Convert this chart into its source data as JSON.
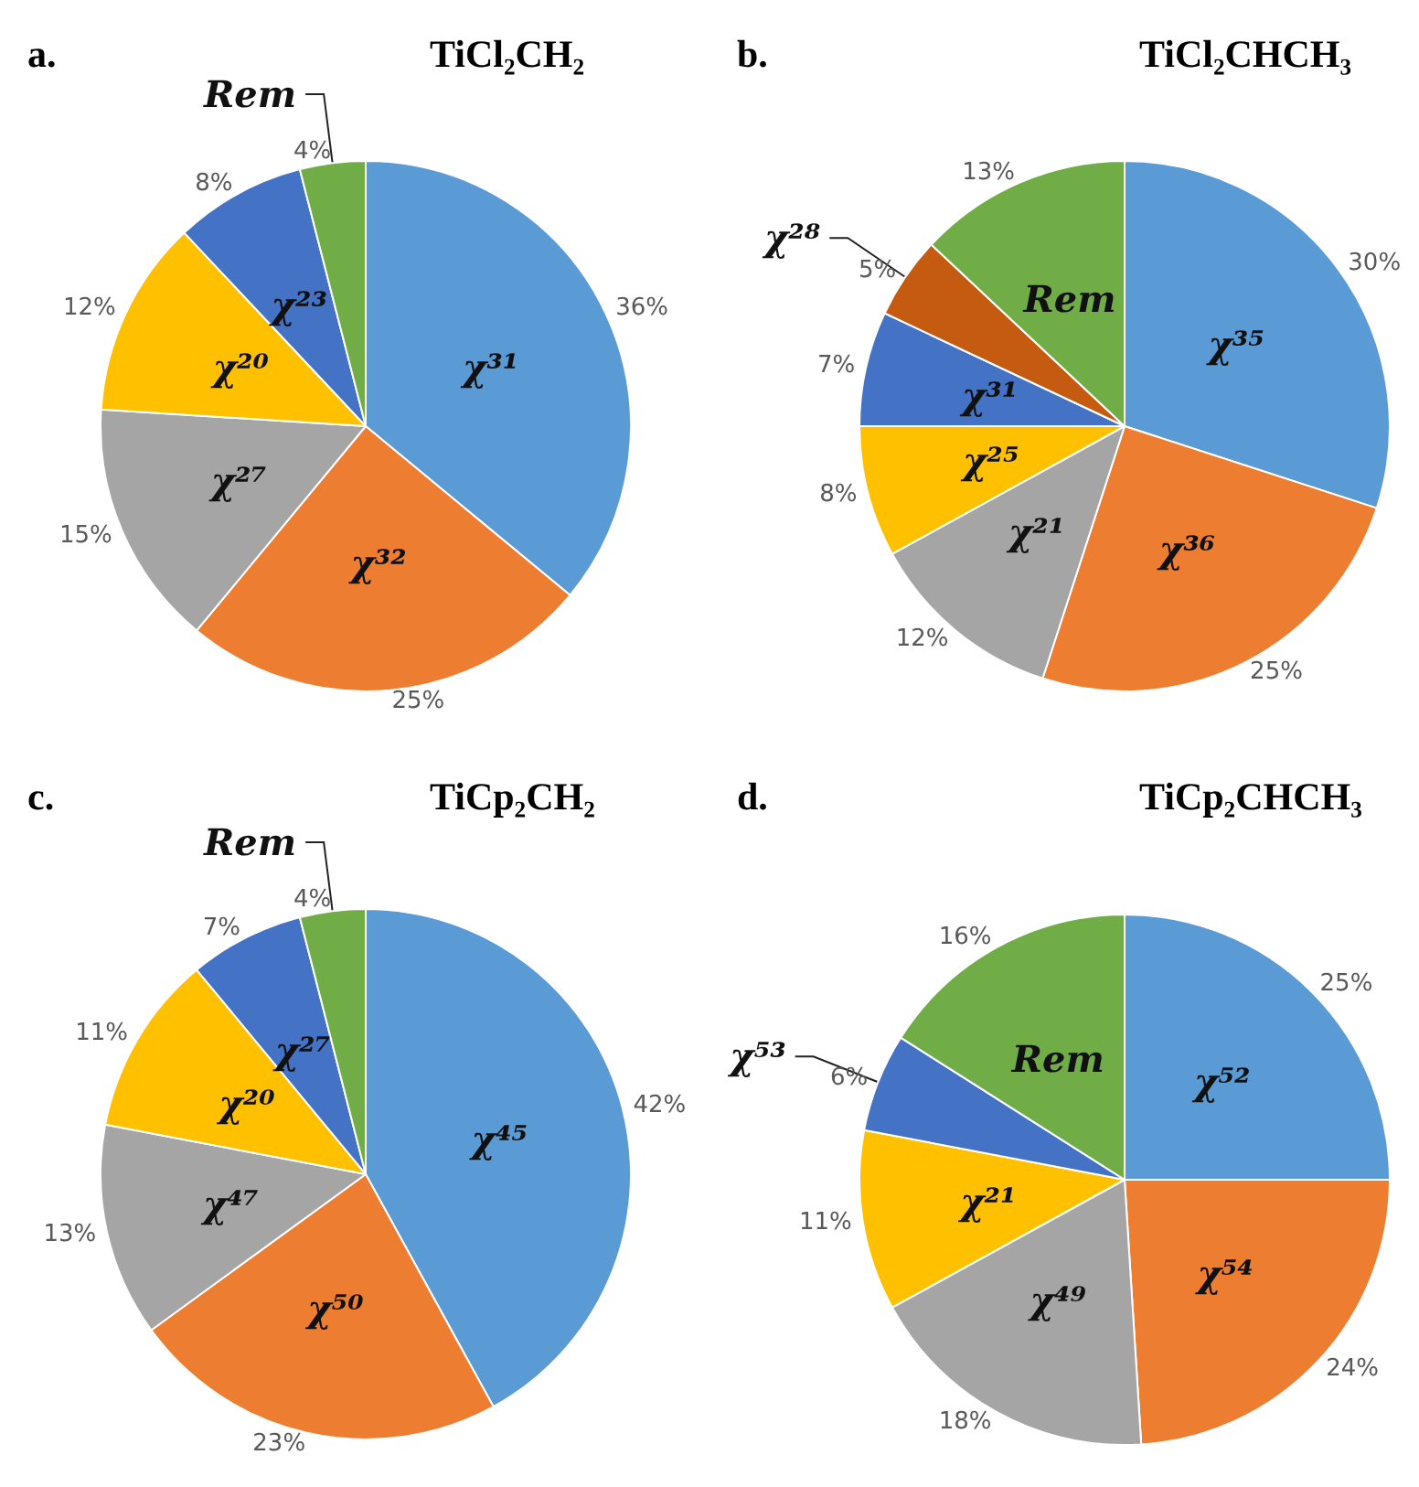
{
  "chart_data": [
    {
      "type": "pie",
      "title": "TiCl₂CH₂",
      "annotations": [
        "a."
      ],
      "categories": [
        "χ³¹",
        "χ³²",
        "χ²⁷",
        "χ²⁰",
        "χ²³",
        "Rem"
      ],
      "values": [
        36,
        25,
        15,
        12,
        8,
        4
      ],
      "value_labels": [
        "36%",
        "25%",
        "15%",
        "12%",
        "8%",
        "4%"
      ],
      "colors": [
        "#5b9bd5",
        "#ed7d31",
        "#a5a5a5",
        "#ffc000",
        "#4472c4",
        "#70ad47"
      ]
    },
    {
      "type": "pie",
      "title": "TiCl₂CHCH₃",
      "annotations": [
        "b."
      ],
      "categories": [
        "χ³⁵",
        "χ³⁶",
        "χ²¹",
        "χ²⁵",
        "χ³¹",
        "χ²⁸",
        "Rem"
      ],
      "values": [
        30,
        25,
        12,
        8,
        7,
        5,
        13
      ],
      "value_labels": [
        "30%",
        "25%",
        "12%",
        "8%",
        "7%",
        "5%",
        "13%"
      ],
      "colors": [
        "#5b9bd5",
        "#ed7d31",
        "#a5a5a5",
        "#ffc000",
        "#4472c4",
        "#c55a11",
        "#70ad47"
      ]
    },
    {
      "type": "pie",
      "title": "TiCp₂CH₂",
      "annotations": [
        "c."
      ],
      "categories": [
        "χ⁴⁵",
        "χ⁵⁰",
        "χ⁴⁷",
        "χ²⁰",
        "χ²⁷",
        "Rem"
      ],
      "values": [
        42,
        23,
        13,
        11,
        7,
        4
      ],
      "value_labels": [
        "42%",
        "23%",
        "13%",
        "11%",
        "7%",
        "4%"
      ],
      "colors": [
        "#5b9bd5",
        "#ed7d31",
        "#a5a5a5",
        "#ffc000",
        "#4472c4",
        "#70ad47"
      ]
    },
    {
      "type": "pie",
      "title": "TiCp₂CHCH₃",
      "annotations": [
        "d."
      ],
      "categories": [
        "χ⁵²",
        "χ⁵⁴",
        "χ⁴⁹",
        "χ²¹",
        "χ⁵³",
        "Rem"
      ],
      "values": [
        25,
        24,
        18,
        11,
        6,
        16
      ],
      "value_labels": [
        "25%",
        "24%",
        "18%",
        "11%",
        "6%",
        "16%"
      ],
      "colors": [
        "#5b9bd5",
        "#ed7d31",
        "#a5a5a5",
        "#ffc000",
        "#4472c4",
        "#70ad47"
      ]
    }
  ]
}
